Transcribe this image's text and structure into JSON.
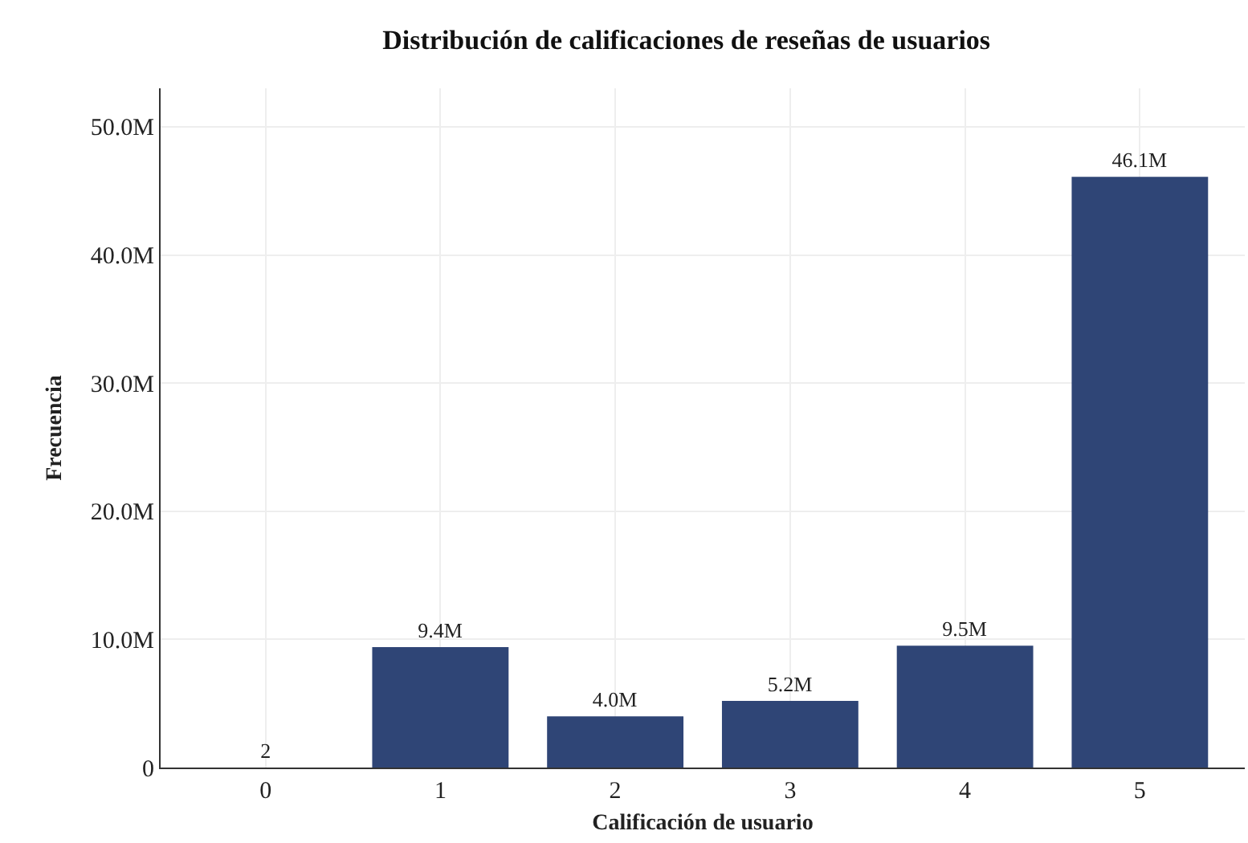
{
  "chart_data": {
    "type": "bar",
    "title": "Distribución de calificaciones de reseñas de usuarios",
    "xlabel": "Calificación de usuario",
    "ylabel": "Frecuencia",
    "categories": [
      "0",
      "1",
      "2",
      "3",
      "4",
      "5"
    ],
    "values": [
      2,
      9400000,
      4000000,
      5200000,
      9500000,
      46100000
    ],
    "value_labels": [
      "2",
      "9.4M",
      "4.0M",
      "5.2M",
      "9.5M",
      "46.1M"
    ],
    "color": "#2f4576",
    "ylim": [
      0,
      53000000
    ],
    "yticks": [
      {
        "value": 0,
        "label": "0"
      },
      {
        "value": 10000000,
        "label": "10.0M"
      },
      {
        "value": 20000000,
        "label": "20.0M"
      },
      {
        "value": 30000000,
        "label": "30.0M"
      },
      {
        "value": 40000000,
        "label": "40.0M"
      },
      {
        "value": 50000000,
        "label": "50.0M"
      }
    ],
    "grid": true
  }
}
